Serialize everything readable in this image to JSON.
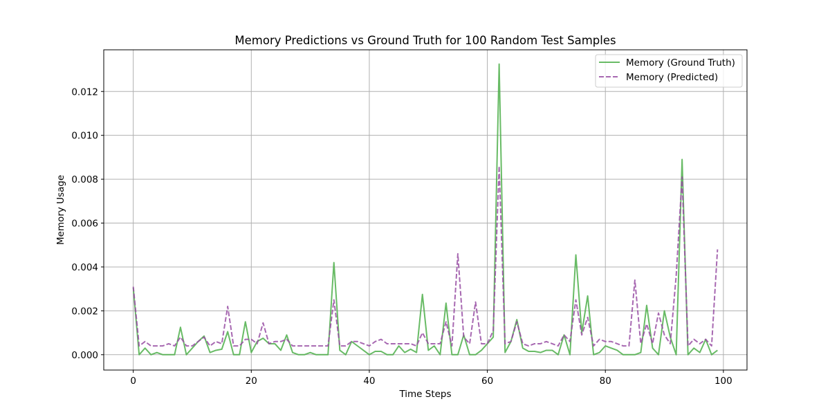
{
  "chart_data": {
    "type": "line",
    "title": "Memory Predictions vs Ground Truth for 100 Random Test Samples",
    "xlabel": "Time Steps",
    "ylabel": "Memory Usage",
    "xlim": [
      -5,
      104
    ],
    "ylim": [
      -0.0007,
      0.0139
    ],
    "xticks": [
      0,
      20,
      40,
      60,
      80,
      100
    ],
    "yticks": [
      0.0,
      0.002,
      0.004,
      0.006,
      0.008,
      0.01,
      0.012
    ],
    "ytick_labels": [
      "0.000",
      "0.002",
      "0.004",
      "0.006",
      "0.008",
      "0.010",
      "0.012"
    ],
    "grid": true,
    "legend_position": "top-right",
    "x": [
      0,
      1,
      2,
      3,
      4,
      5,
      6,
      7,
      8,
      9,
      10,
      11,
      12,
      13,
      14,
      15,
      16,
      17,
      18,
      19,
      20,
      21,
      22,
      23,
      24,
      25,
      26,
      27,
      28,
      29,
      30,
      31,
      32,
      33,
      34,
      35,
      36,
      37,
      38,
      39,
      40,
      41,
      42,
      43,
      44,
      45,
      46,
      47,
      48,
      49,
      50,
      51,
      52,
      53,
      54,
      55,
      56,
      57,
      58,
      59,
      60,
      61,
      62,
      63,
      64,
      65,
      66,
      67,
      68,
      69,
      70,
      71,
      72,
      73,
      74,
      75,
      76,
      77,
      78,
      79,
      80,
      81,
      82,
      83,
      84,
      85,
      86,
      87,
      88,
      89,
      90,
      91,
      92,
      93,
      94,
      95,
      96,
      97,
      98,
      99
    ],
    "series": [
      {
        "name": "Memory (Ground Truth)",
        "color": "#4daf4a",
        "style": "solid",
        "values": [
          0.00305,
          0.0,
          0.0003,
          0.0,
          0.0001,
          0.0,
          0.0,
          0.0,
          0.00125,
          0.0,
          0.0003,
          0.0006,
          0.00085,
          0.0001,
          0.0002,
          0.00025,
          0.00105,
          0.0,
          0.0,
          0.0015,
          0.0001,
          0.0006,
          0.00075,
          0.0005,
          0.0005,
          0.0002,
          0.0009,
          0.0001,
          0.0,
          0.0,
          0.0001,
          0.0,
          0.0,
          0.0,
          0.0042,
          0.0002,
          0.0,
          0.0006,
          0.0004,
          0.0002,
          0.0,
          0.00015,
          0.00015,
          0.0,
          0.0,
          0.0004,
          0.0001,
          0.00025,
          0.0001,
          0.00275,
          0.0002,
          0.0004,
          0.0,
          0.00235,
          0.0,
          0.0,
          0.0009,
          0.0,
          0.0,
          0.0002,
          0.0005,
          0.0008,
          0.01325,
          0.0001,
          0.0006,
          0.0016,
          0.0003,
          0.00015,
          0.00015,
          0.0001,
          0.0002,
          0.0002,
          0.0,
          0.0009,
          0.0,
          0.00455,
          0.001,
          0.00268,
          0.0,
          0.0001,
          0.0004,
          0.0003,
          0.0002,
          0.0,
          0.0,
          0.0,
          0.0001,
          0.00225,
          0.0003,
          0.0,
          0.002,
          0.0008,
          0.0,
          0.0089,
          0.0,
          0.0003,
          0.0001,
          0.0007,
          0.0,
          0.0002
        ]
      },
      {
        "name": "Memory (Predicted)",
        "color": "#984ea3",
        "style": "dashed",
        "values": [
          0.0031,
          0.0004,
          0.0006,
          0.0004,
          0.0004,
          0.0004,
          0.0005,
          0.0004,
          0.0008,
          0.0004,
          0.0004,
          0.0006,
          0.0008,
          0.0004,
          0.0006,
          0.0005,
          0.0022,
          0.0004,
          0.0004,
          0.0007,
          0.0007,
          0.0005,
          0.00145,
          0.0005,
          0.0006,
          0.0006,
          0.0007,
          0.0004,
          0.0004,
          0.0004,
          0.0004,
          0.0004,
          0.0004,
          0.0004,
          0.0025,
          0.0004,
          0.0004,
          0.0006,
          0.0006,
          0.0005,
          0.0004,
          0.0006,
          0.0007,
          0.0005,
          0.0005,
          0.0005,
          0.0005,
          0.0005,
          0.0004,
          0.001,
          0.0005,
          0.0005,
          0.0005,
          0.0015,
          0.0004,
          0.0046,
          0.0008,
          0.0005,
          0.0024,
          0.0005,
          0.0005,
          0.0011,
          0.0086,
          0.0005,
          0.0006,
          0.0015,
          0.0005,
          0.0004,
          0.0005,
          0.0005,
          0.0006,
          0.0005,
          0.0004,
          0.0009,
          0.0006,
          0.0025,
          0.0009,
          0.0017,
          0.0004,
          0.0007,
          0.0006,
          0.0006,
          0.0005,
          0.0004,
          0.0004,
          0.0034,
          0.0005,
          0.0014,
          0.0005,
          0.0019,
          0.0009,
          0.0005,
          0.0036,
          0.0081,
          0.0004,
          0.0007,
          0.0005,
          0.0007,
          0.0004,
          0.0048
        ]
      }
    ]
  }
}
